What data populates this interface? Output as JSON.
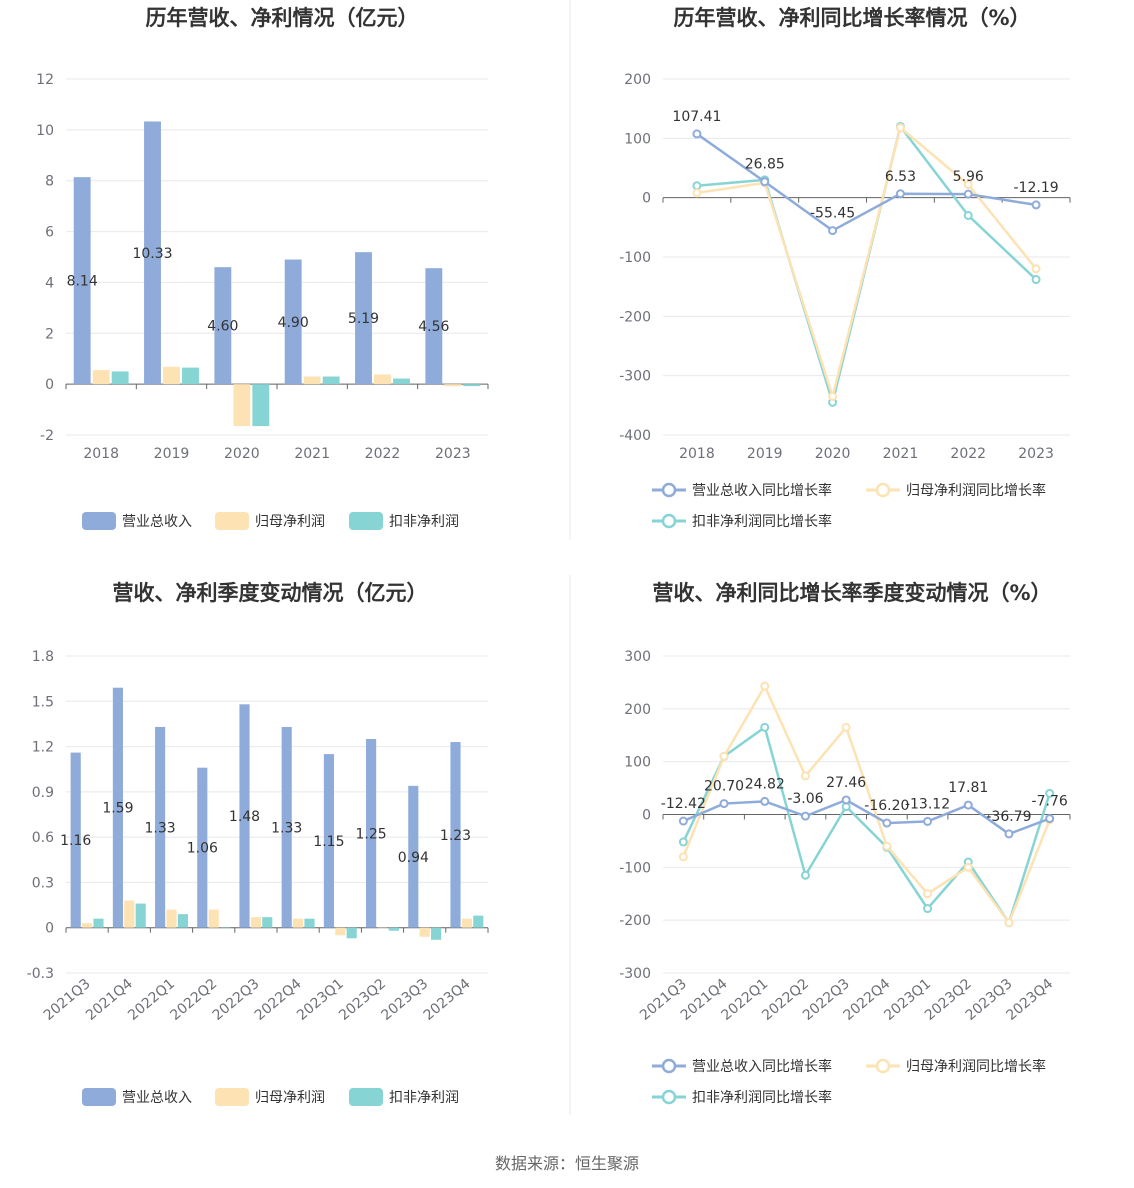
{
  "colors": {
    "revenue": "#8eabda",
    "net_profit": "#fde2b3",
    "deducted_profit": "#86d4d4",
    "grid": "#e8e8ee",
    "axis": "#666666",
    "divider": "#e8e8e8"
  },
  "source_text": "数据来源：恒生聚源",
  "chart_data": [
    {
      "id": "annual-values",
      "type": "bar",
      "title": "历年营收、净利情况（亿元）",
      "categories": [
        "2018",
        "2019",
        "2020",
        "2021",
        "2022",
        "2023"
      ],
      "ylim": [
        -2,
        12
      ],
      "yticks": [
        -2,
        0,
        2,
        4,
        6,
        8,
        10,
        12
      ],
      "grid": true,
      "legend_position": "bottom",
      "series": [
        {
          "name": "营业总收入",
          "values": [
            8.14,
            10.33,
            4.6,
            4.9,
            5.19,
            4.56
          ],
          "labels": [
            "8.14",
            "10.33",
            "4.60",
            "4.90",
            "5.19",
            "4.56"
          ]
        },
        {
          "name": "归母净利润",
          "values": [
            0.55,
            0.68,
            -1.65,
            0.3,
            0.38,
            -0.08
          ]
        },
        {
          "name": "扣非净利润",
          "values": [
            0.5,
            0.65,
            -1.65,
            0.3,
            0.22,
            -0.08
          ]
        }
      ]
    },
    {
      "id": "annual-growth",
      "type": "line",
      "title": "历年营收、净利同比增长率情况（%）",
      "categories": [
        "2018",
        "2019",
        "2020",
        "2021",
        "2022",
        "2023"
      ],
      "ylim": [
        -400,
        200
      ],
      "yticks": [
        -400,
        -300,
        -200,
        -100,
        0,
        100,
        200
      ],
      "grid": true,
      "legend_position": "bottom",
      "series": [
        {
          "name": "营业总收入同比增长率",
          "values": [
            107.41,
            26.85,
            -55.45,
            6.53,
            5.96,
            -12.19
          ],
          "labels": [
            "107.41",
            "26.85",
            "-55.45",
            "6.53",
            "5.96",
            "-12.19"
          ]
        },
        {
          "name": "归母净利润同比增长率",
          "values": [
            8,
            25,
            -335,
            118,
            22,
            -120
          ]
        },
        {
          "name": "扣非净利润同比增长率",
          "values": [
            20,
            30,
            -345,
            120,
            -30,
            -138
          ]
        }
      ]
    },
    {
      "id": "quarterly-values",
      "type": "bar",
      "title": "营收、净利季度变动情况（亿元）",
      "categories": [
        "2021Q3",
        "2021Q4",
        "2022Q1",
        "2022Q2",
        "2022Q3",
        "2022Q4",
        "2023Q1",
        "2023Q2",
        "2023Q3",
        "2023Q4"
      ],
      "ylim": [
        -0.3,
        1.8
      ],
      "yticks": [
        -0.3,
        0,
        0.3,
        0.6,
        0.9,
        1.2,
        1.5,
        1.8
      ],
      "ytick_labels": [
        "-0.3",
        "0",
        "0.3",
        "0.6",
        "0.9",
        "1.2",
        "1.5",
        "1.8"
      ],
      "grid": true,
      "legend_position": "bottom",
      "series": [
        {
          "name": "营业总收入",
          "values": [
            1.16,
            1.59,
            1.33,
            1.06,
            1.48,
            1.33,
            1.15,
            1.25,
            0.94,
            1.23
          ],
          "labels": [
            "1.16",
            "1.59",
            "1.33",
            "1.06",
            "1.48",
            "1.33",
            "1.15",
            "1.25",
            "0.94",
            "1.23"
          ]
        },
        {
          "name": "归母净利润",
          "values": [
            0.03,
            0.18,
            0.12,
            0.12,
            0.07,
            0.06,
            -0.05,
            0.0,
            -0.06,
            0.06
          ]
        },
        {
          "name": "扣非净利润",
          "values": [
            0.06,
            0.16,
            0.09,
            0.0,
            0.07,
            0.06,
            -0.07,
            -0.02,
            -0.08,
            0.08
          ]
        }
      ]
    },
    {
      "id": "quarterly-growth",
      "type": "line",
      "title": "营收、净利同比增长率季度变动情况（%）",
      "categories": [
        "2021Q3",
        "2021Q4",
        "2022Q1",
        "2022Q2",
        "2022Q3",
        "2022Q4",
        "2023Q1",
        "2023Q2",
        "2023Q3",
        "2023Q4"
      ],
      "ylim": [
        -300,
        300
      ],
      "yticks": [
        -300,
        -200,
        -100,
        0,
        100,
        200,
        300
      ],
      "grid": true,
      "legend_position": "bottom",
      "series": [
        {
          "name": "营业总收入同比增长率",
          "values": [
            -12.42,
            20.7,
            24.82,
            -3.06,
            27.46,
            -16.2,
            -13.12,
            17.81,
            -36.79,
            -7.76
          ],
          "labels": [
            "-12.42",
            "20.70",
            "24.82",
            "-3.06",
            "27.46",
            "-16.20",
            "-13.12",
            "17.81",
            "-36.79",
            "-7.76"
          ]
        },
        {
          "name": "归母净利润同比增长率",
          "values": [
            -80,
            110,
            243,
            73,
            165,
            -60,
            -150,
            -100,
            -205,
            -10
          ]
        },
        {
          "name": "扣非净利润同比增长率",
          "values": [
            -52,
            110,
            165,
            -115,
            15,
            -62,
            -178,
            -90,
            -205,
            40
          ]
        }
      ]
    }
  ]
}
